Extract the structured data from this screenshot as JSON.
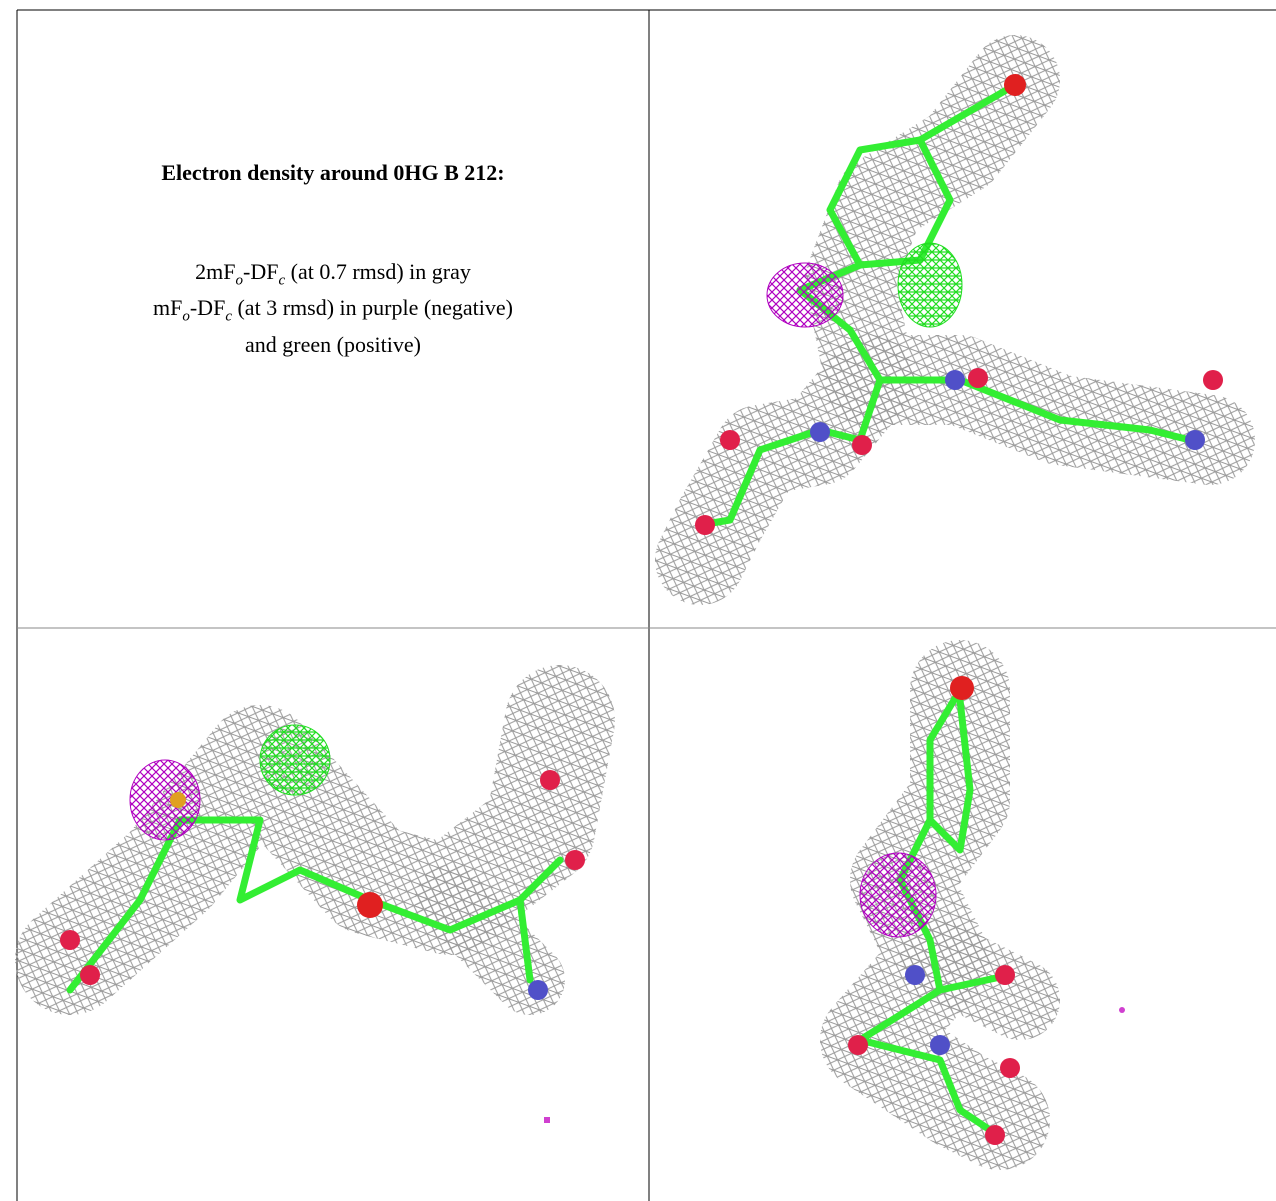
{
  "caption": {
    "title": "Electron density around 0HG B 212:",
    "lines": [
      [
        "2mF",
        "o",
        "-DF",
        "c",
        " (at 0.7 rmsd) in gray"
      ],
      [
        "mF",
        "o",
        "-DF",
        "c",
        " (at 3 rmsd) in purple (negative)"
      ],
      [
        "and green (positive)"
      ]
    ]
  }
}
